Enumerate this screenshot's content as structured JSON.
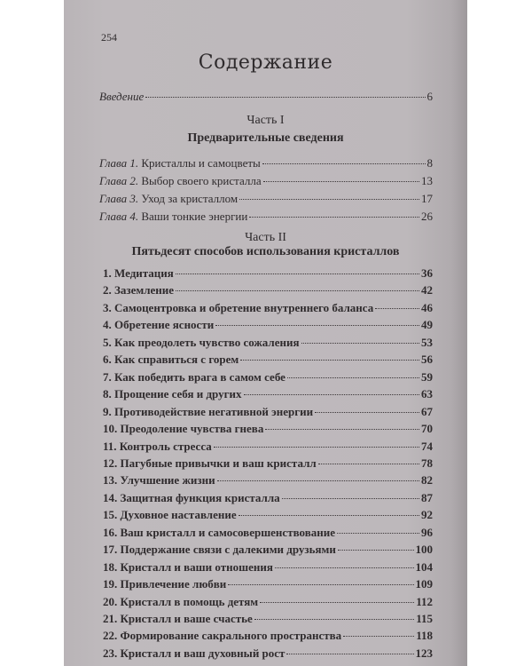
{
  "page_number": "254",
  "title": "Содержание",
  "intro": {
    "label": "Введение",
    "page": "6"
  },
  "part1": {
    "label": "Часть I",
    "title": "Предварительные сведения",
    "chapters": [
      {
        "prefix": "Глава 1.",
        "label": "Кристаллы и самоцветы",
        "page": "8"
      },
      {
        "prefix": "Глава 2.",
        "label": "Выбор своего кристалла",
        "page": "13"
      },
      {
        "prefix": "Глава 3.",
        "label": "Уход за кристаллом",
        "page": "17"
      },
      {
        "prefix": "Глава 4.",
        "label": "Ваши тонкие энергии",
        "page": "26"
      }
    ]
  },
  "part2": {
    "label": "Часть II",
    "title": "Пятьдесят способов использования кристаллов",
    "items": [
      {
        "label": "1. Медитация",
        "page": "36"
      },
      {
        "label": "2. Заземление",
        "page": "42"
      },
      {
        "label": "3. Самоцентровка и обретение внутреннего баланса",
        "page": "46"
      },
      {
        "label": "4. Обретение ясности",
        "page": "49"
      },
      {
        "label": "5. Как преодолеть чувство сожаления",
        "page": "53"
      },
      {
        "label": "6. Как справиться с горем",
        "page": "56"
      },
      {
        "label": "7. Как победить врага в самом себе",
        "page": "59"
      },
      {
        "label": "8. Прощение себя и других",
        "page": "63"
      },
      {
        "label": "9. Противодействие негативной энергии",
        "page": "67"
      },
      {
        "label": "10. Преодоление чувства гнева",
        "page": "70"
      },
      {
        "label": "11. Контроль стресса",
        "page": "74"
      },
      {
        "label": "12. Пагубные привычки и ваш кристалл",
        "page": "78"
      },
      {
        "label": "13. Улучшение жизни",
        "page": "82"
      },
      {
        "label": "14. Защитная функция кристалла",
        "page": "87"
      },
      {
        "label": "15. Духовное наставление",
        "page": "92"
      },
      {
        "label": "16. Ваш кристалл и самосовершенствование",
        "page": "96"
      },
      {
        "label": "17. Поддержание связи с далекими друзьями",
        "page": "100"
      },
      {
        "label": "18. Кристалл и ваши отношения",
        "page": "104"
      },
      {
        "label": "19. Привлечение любви",
        "page": "109"
      },
      {
        "label": "20. Кристалл в помощь детям",
        "page": "112"
      },
      {
        "label": "21. Кристалл и ваше счастье",
        "page": "115"
      },
      {
        "label": "22. Формирование сакрального пространства",
        "page": "118"
      },
      {
        "label": "23. Кристалл и ваш духовный рост",
        "page": "123"
      }
    ]
  }
}
